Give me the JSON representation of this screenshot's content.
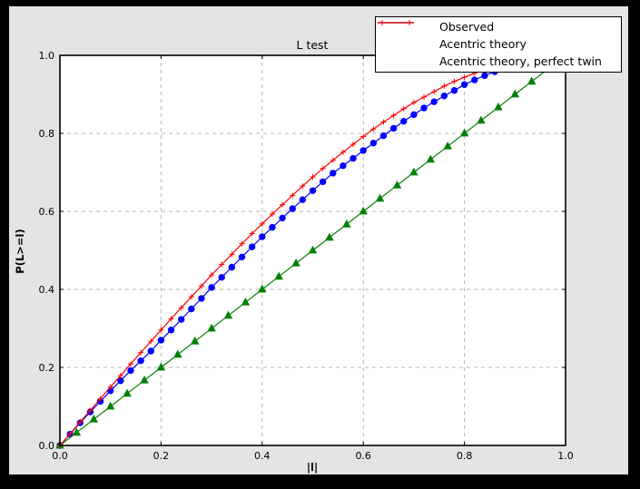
{
  "colors": {
    "page_background": "#000000",
    "figure_background": "#e4e4e4",
    "plot_background": "#ffffff",
    "spine": "#000000",
    "grid": "#b5b5b5",
    "observed": "#0000ff",
    "acentric_theory": "#008000",
    "perfect_twin": "#ff0000"
  },
  "chart_data": {
    "type": "line",
    "title": "L test",
    "xlabel": "|l|",
    "ylabel": "P(L>=l)",
    "xlim": [
      0.0,
      1.0
    ],
    "ylim": [
      0.0,
      1.0
    ],
    "x_ticks": [
      0.0,
      0.2,
      0.4,
      0.6,
      0.8,
      1.0
    ],
    "y_ticks": [
      0.0,
      0.2,
      0.4,
      0.6,
      0.8,
      1.0
    ],
    "tick_label_format": [
      "0.0",
      "0.2",
      "0.4",
      "0.6",
      "0.8",
      "1.0"
    ],
    "grid": true,
    "legend_position": "upper right",
    "series": [
      {
        "name": "Observed",
        "color": "#0000ff",
        "marker": "circle",
        "legend_markers": false,
        "x": [
          0,
          0.02,
          0.04,
          0.06,
          0.08,
          0.1,
          0.12,
          0.14,
          0.16,
          0.18,
          0.2,
          0.22,
          0.24,
          0.26,
          0.28,
          0.3,
          0.32,
          0.34,
          0.36,
          0.38,
          0.4,
          0.42,
          0.44,
          0.46,
          0.48,
          0.5,
          0.52,
          0.54,
          0.56,
          0.58,
          0.6,
          0.62,
          0.64,
          0.66,
          0.68,
          0.7,
          0.72,
          0.74,
          0.76,
          0.78,
          0.8,
          0.82,
          0.84,
          0.86
        ],
        "y": [
          0,
          0.029,
          0.058,
          0.086,
          0.113,
          0.14,
          0.166,
          0.192,
          0.217,
          0.242,
          0.27,
          0.296,
          0.323,
          0.35,
          0.377,
          0.405,
          0.431,
          0.457,
          0.483,
          0.509,
          0.535,
          0.559,
          0.583,
          0.607,
          0.63,
          0.653,
          0.676,
          0.698,
          0.717,
          0.736,
          0.756,
          0.775,
          0.794,
          0.813,
          0.831,
          0.848,
          0.865,
          0.881,
          0.896,
          0.91,
          0.925,
          0.937,
          0.948,
          0.958
        ]
      },
      {
        "name": "Acentric theory",
        "color": "#008000",
        "marker": "triangle",
        "legend_markers": false,
        "x": [
          0,
          0.033,
          0.067,
          0.1,
          0.133,
          0.167,
          0.2,
          0.233,
          0.267,
          0.3,
          0.333,
          0.367,
          0.4,
          0.433,
          0.467,
          0.5,
          0.533,
          0.567,
          0.6,
          0.633,
          0.667,
          0.7,
          0.733,
          0.767,
          0.8,
          0.833,
          0.867,
          0.9,
          0.933,
          0.966
        ],
        "y": [
          0,
          0.033,
          0.067,
          0.1,
          0.133,
          0.167,
          0.2,
          0.233,
          0.267,
          0.3,
          0.333,
          0.367,
          0.4,
          0.433,
          0.467,
          0.5,
          0.533,
          0.567,
          0.6,
          0.633,
          0.667,
          0.7,
          0.733,
          0.767,
          0.8,
          0.833,
          0.867,
          0.9,
          0.933,
          0.966
        ]
      },
      {
        "name": "Acentric theory, perfect twin",
        "color": "#ff0000",
        "marker": "plus",
        "legend_markers": true,
        "x": [
          0,
          0.02,
          0.04,
          0.06,
          0.08,
          0.1,
          0.12,
          0.14,
          0.16,
          0.18,
          0.2,
          0.22,
          0.24,
          0.26,
          0.28,
          0.3,
          0.32,
          0.34,
          0.36,
          0.38,
          0.4,
          0.42,
          0.44,
          0.46,
          0.48,
          0.5,
          0.52,
          0.54,
          0.56,
          0.58,
          0.6,
          0.62,
          0.64,
          0.66,
          0.68,
          0.7,
          0.72,
          0.74,
          0.76,
          0.78,
          0.8,
          0.82,
          0.84,
          0.86,
          0.88
        ],
        "y": [
          0,
          0.03,
          0.06,
          0.09,
          0.12,
          0.15,
          0.179,
          0.209,
          0.238,
          0.267,
          0.296,
          0.325,
          0.353,
          0.381,
          0.409,
          0.437,
          0.464,
          0.49,
          0.517,
          0.543,
          0.568,
          0.593,
          0.617,
          0.641,
          0.665,
          0.688,
          0.71,
          0.731,
          0.752,
          0.772,
          0.792,
          0.811,
          0.829,
          0.846,
          0.863,
          0.879,
          0.893,
          0.907,
          0.921,
          0.933,
          0.944,
          0.954,
          0.964,
          0.972,
          0.979
        ]
      }
    ]
  }
}
